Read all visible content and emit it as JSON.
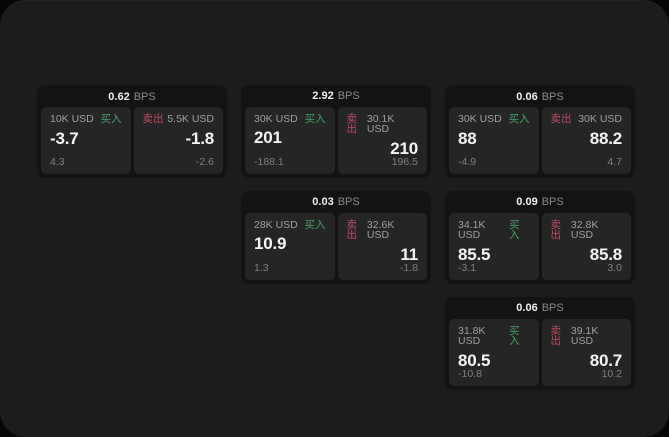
{
  "theme": {
    "page_bg": "#060606",
    "panel_bg": "#1c1c1c",
    "card_bg": "#131313",
    "tile_bg": "#252525",
    "text_primary": "#f5f5f5",
    "text_muted": "#a0a0a0",
    "text_dim": "#7f7f7f",
    "buy_green": "#46a169",
    "sell_red": "#bd4a63"
  },
  "cards": [
    {
      "row": 1,
      "col": 1,
      "bps_value": "0.62",
      "bps_unit": "BPS",
      "buy": {
        "amount": "10K USD",
        "action": "买入",
        "price": "-3.7",
        "delta": "4.3"
      },
      "sell": {
        "amount": "5.5K USD",
        "action": "卖出",
        "price": "-1.8",
        "delta": "-2.6"
      }
    },
    {
      "row": 1,
      "col": 2,
      "bps_value": "2.92",
      "bps_unit": "BPS",
      "buy": {
        "amount": "30K USD",
        "action": "买入",
        "price": "201",
        "delta": "-188.1"
      },
      "sell": {
        "amount": "30.1K USD",
        "action": "卖出",
        "price": "210",
        "delta": "196.5"
      }
    },
    {
      "row": 1,
      "col": 3,
      "bps_value": "0.06",
      "bps_unit": "BPS",
      "buy": {
        "amount": "30K USD",
        "action": "买入",
        "price": "88",
        "delta": "-4.9"
      },
      "sell": {
        "amount": "30K USD",
        "action": "卖出",
        "price": "88.2",
        "delta": "4.7"
      }
    },
    {
      "row": 2,
      "col": 2,
      "bps_value": "0.03",
      "bps_unit": "BPS",
      "buy": {
        "amount": "28K USD",
        "action": "买入",
        "price": "10.9",
        "delta": "1.3"
      },
      "sell": {
        "amount": "32.6K USD",
        "action": "卖出",
        "price": "11",
        "delta": "-1.8"
      }
    },
    {
      "row": 2,
      "col": 3,
      "bps_value": "0.09",
      "bps_unit": "BPS",
      "buy": {
        "amount": "34.1K USD",
        "action": "买入",
        "price": "85.5",
        "delta": "-3.1"
      },
      "sell": {
        "amount": "32.8K USD",
        "action": "卖出",
        "price": "85.8",
        "delta": "3.0"
      }
    },
    {
      "row": 3,
      "col": 3,
      "bps_value": "0.06",
      "bps_unit": "BPS",
      "buy": {
        "amount": "31.8K USD",
        "action": "买入",
        "price": "80.5",
        "delta": "-10.8"
      },
      "sell": {
        "amount": "39.1K USD",
        "action": "卖出",
        "price": "80.7",
        "delta": "10.2"
      }
    }
  ]
}
